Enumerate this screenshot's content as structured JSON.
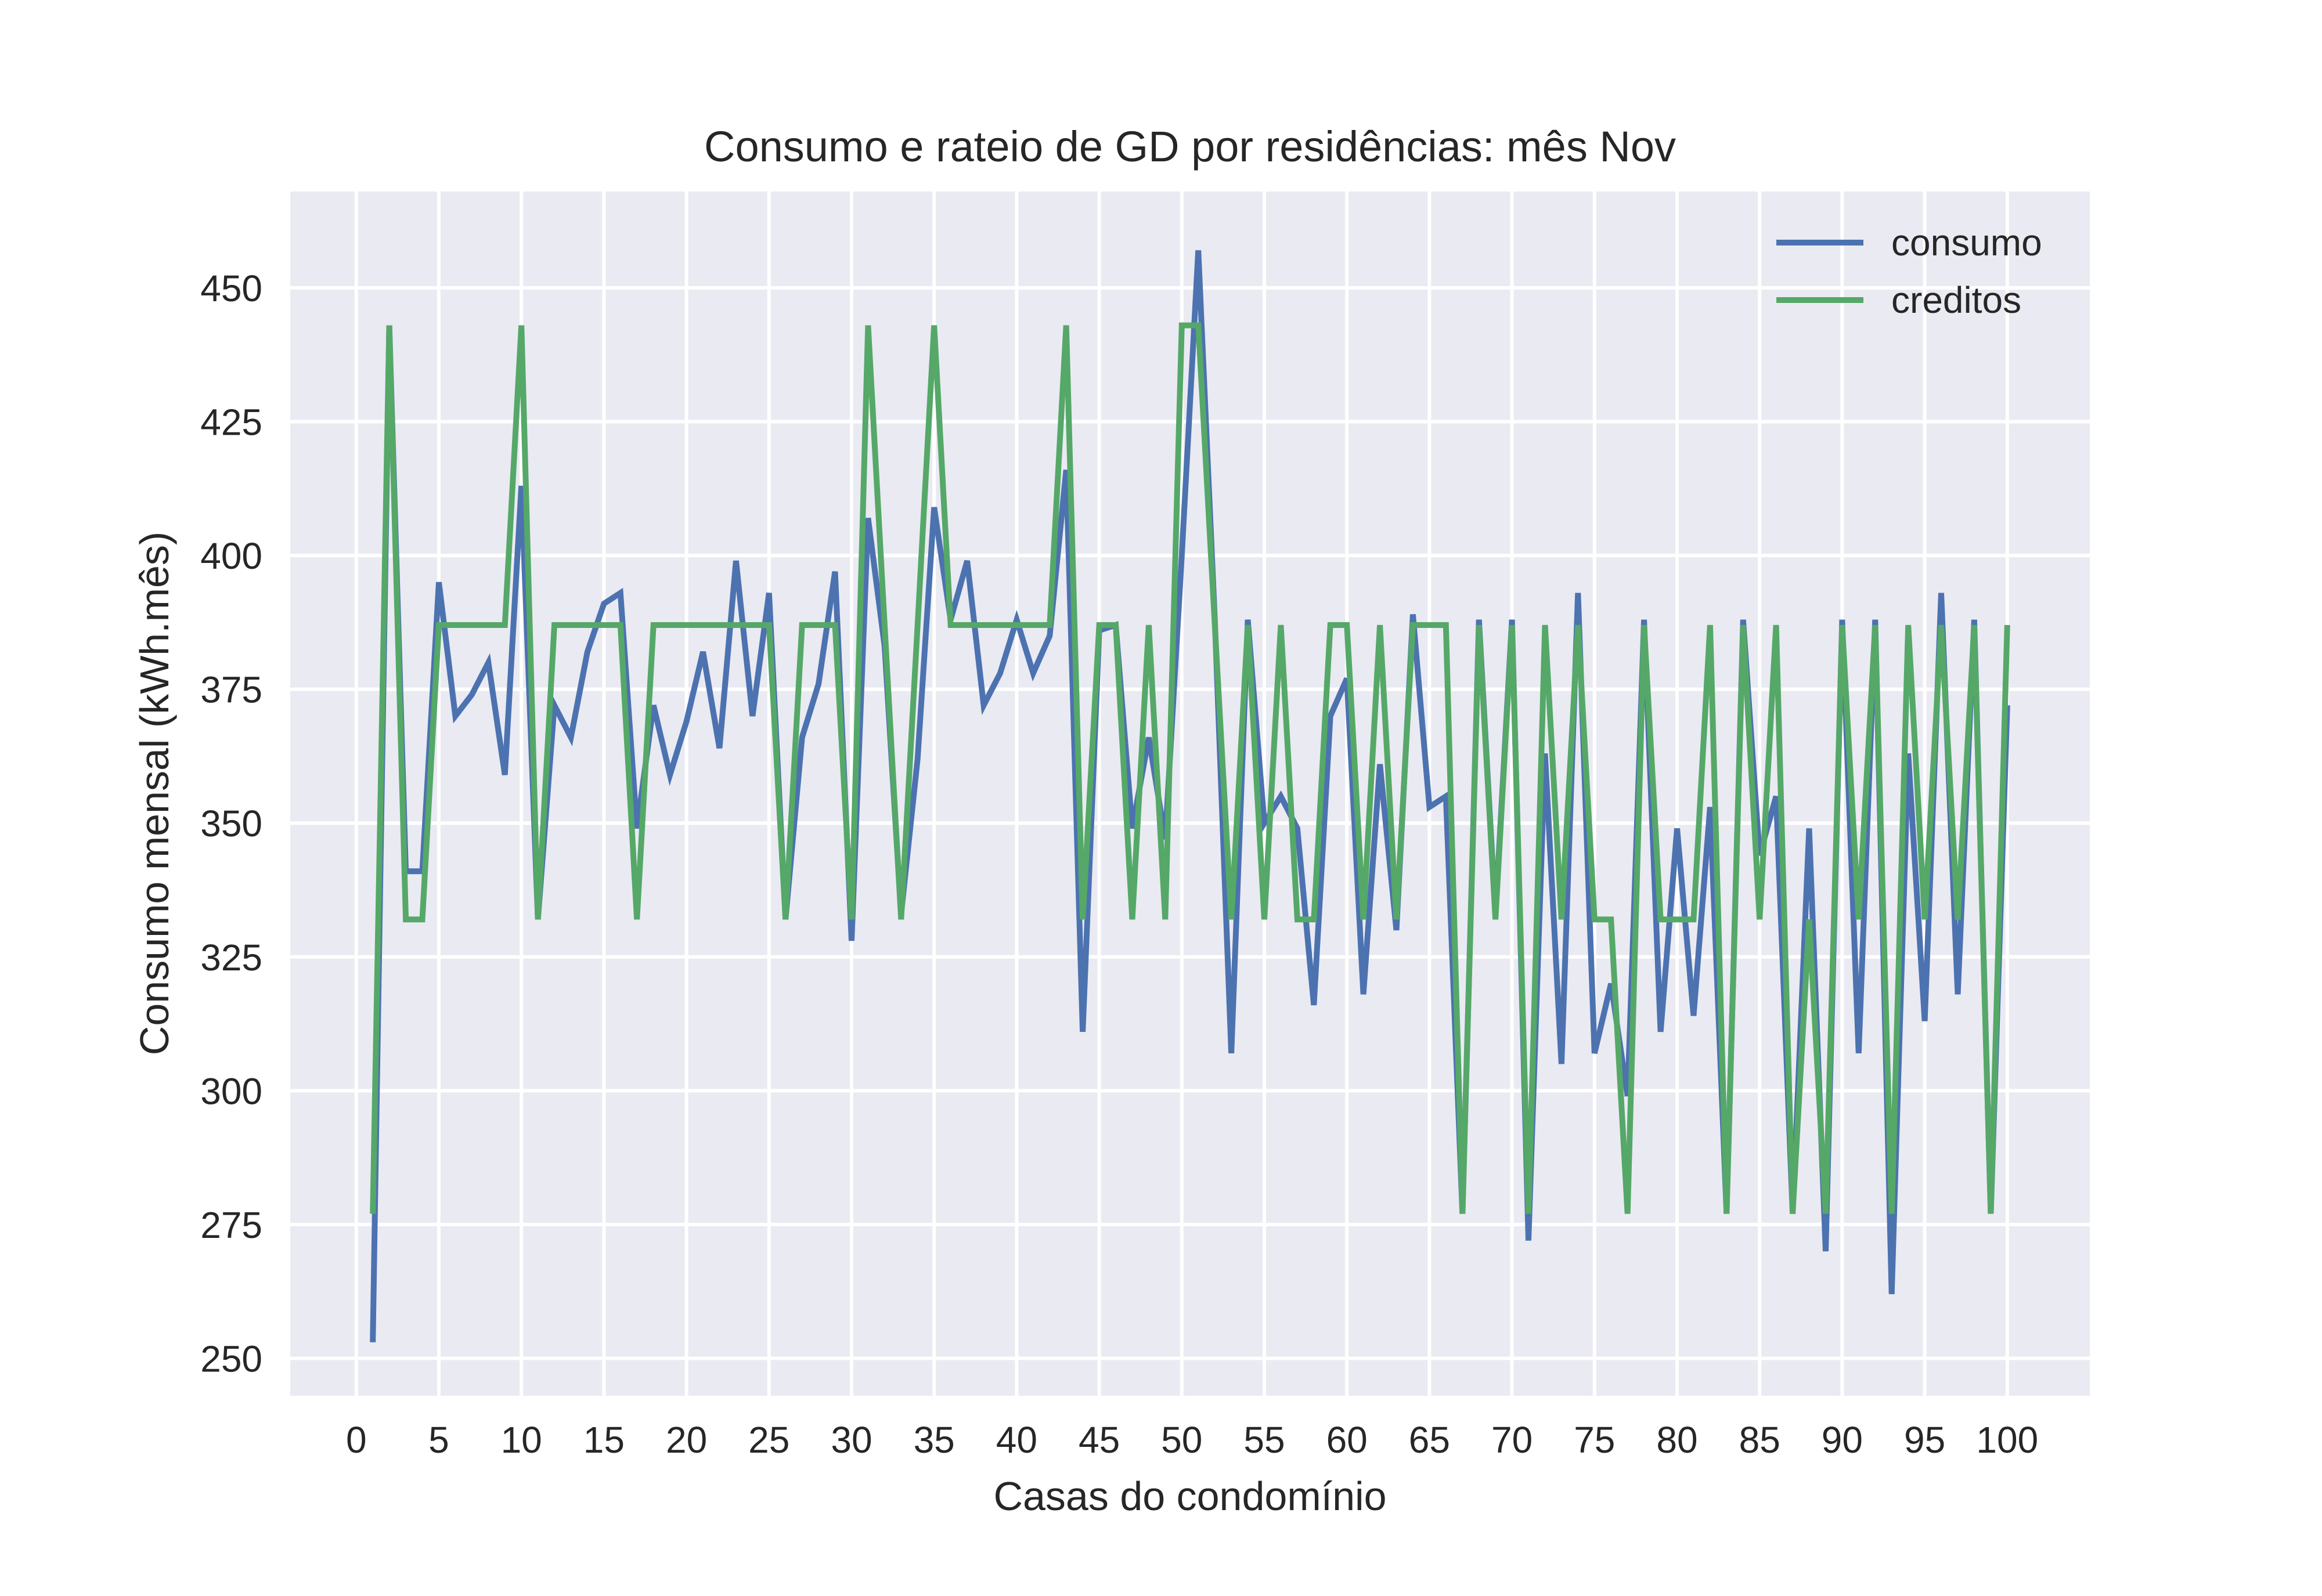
{
  "chart_data": {
    "type": "line",
    "title": "Consumo e rateio de GD por residências: mês Nov",
    "xlabel": "Casas do condomínio",
    "ylabel": "Consumo mensal (kWh.mês)",
    "xlim": [
      -4,
      105
    ],
    "ylim": [
      243,
      468
    ],
    "xticks": [
      0,
      5,
      10,
      15,
      20,
      25,
      30,
      35,
      40,
      45,
      50,
      55,
      60,
      65,
      70,
      75,
      80,
      85,
      90,
      95,
      100
    ],
    "yticks": [
      250,
      275,
      300,
      325,
      350,
      375,
      400,
      425,
      450
    ],
    "grid": true,
    "legend_position": "top-right",
    "x": [
      1,
      2,
      3,
      4,
      5,
      6,
      7,
      8,
      9,
      10,
      11,
      12,
      13,
      14,
      15,
      16,
      17,
      18,
      19,
      20,
      21,
      22,
      23,
      24,
      25,
      26,
      27,
      28,
      29,
      30,
      31,
      32,
      33,
      34,
      35,
      36,
      37,
      38,
      39,
      40,
      41,
      42,
      43,
      44,
      45,
      46,
      47,
      48,
      49,
      50,
      51,
      52,
      53,
      54,
      55,
      56,
      57,
      58,
      59,
      60,
      61,
      62,
      63,
      64,
      65,
      66,
      67,
      68,
      69,
      70,
      71,
      72,
      73,
      74,
      75,
      76,
      77,
      78,
      79,
      80,
      81,
      82,
      83,
      84,
      85,
      86,
      87,
      88,
      89,
      90,
      91,
      92,
      93,
      94,
      95,
      96,
      97,
      98,
      99,
      100
    ],
    "series": [
      {
        "name": "consumo",
        "color": "#4c72b0",
        "values": [
          253,
          443,
          341,
          341,
          395,
          370,
          374,
          380,
          359,
          413,
          332,
          372,
          366,
          382,
          391,
          393,
          349,
          372,
          359,
          369,
          382,
          364,
          399,
          370,
          393,
          332,
          366,
          376,
          397,
          328,
          407,
          383,
          333,
          362,
          409,
          388,
          399,
          372,
          378,
          388,
          378,
          385,
          416,
          311,
          386,
          387,
          349,
          366,
          347,
          400,
          457,
          388,
          307,
          388,
          350,
          355,
          349,
          316,
          370,
          377,
          318,
          361,
          330,
          389,
          353,
          355,
          277,
          388,
          333,
          388,
          272,
          363,
          305,
          393,
          307,
          320,
          299,
          388,
          311,
          349,
          314,
          353,
          277,
          388,
          344,
          355,
          277,
          349,
          270,
          388,
          307,
          388,
          262,
          363,
          313,
          393,
          318,
          388,
          277,
          372
        ]
      },
      {
        "name": "creditos",
        "color": "#55a868",
        "values": [
          277,
          443,
          332,
          332,
          387,
          387,
          387,
          387,
          387,
          443,
          332,
          387,
          387,
          387,
          387,
          387,
          332,
          387,
          387,
          387,
          387,
          387,
          387,
          387,
          387,
          332,
          387,
          387,
          387,
          332,
          443,
          387,
          332,
          387,
          443,
          387,
          387,
          387,
          387,
          387,
          387,
          387,
          443,
          332,
          387,
          387,
          332,
          387,
          332,
          443,
          443,
          387,
          332,
          387,
          332,
          387,
          332,
          332,
          387,
          387,
          332,
          387,
          332,
          387,
          387,
          387,
          277,
          387,
          332,
          387,
          277,
          387,
          332,
          387,
          332,
          332,
          277,
          387,
          332,
          332,
          332,
          387,
          277,
          387,
          332,
          387,
          277,
          332,
          277,
          387,
          332,
          387,
          277,
          387,
          332,
          387,
          332,
          387,
          277,
          387
        ]
      }
    ]
  }
}
